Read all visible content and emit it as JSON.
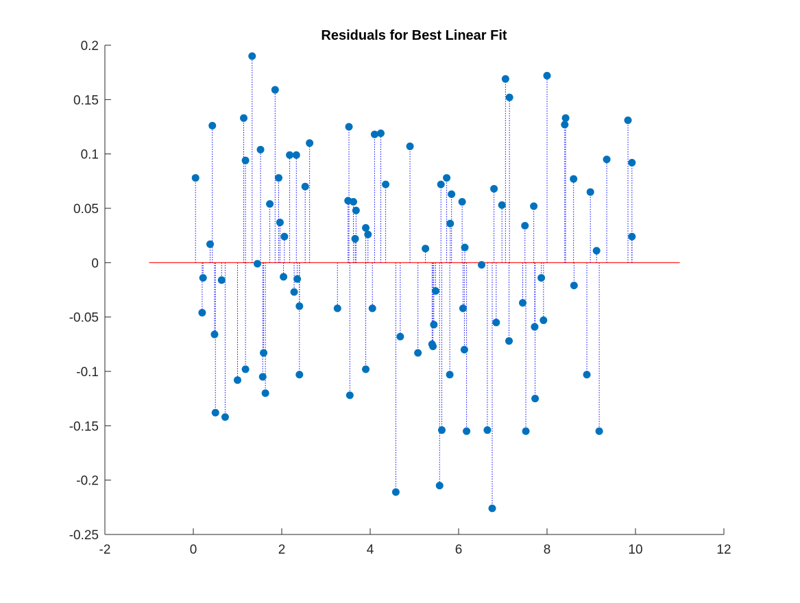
{
  "chart_data": {
    "type": "scatter",
    "title": "Residuals for Best Linear Fit",
    "xlabel": "",
    "ylabel": "",
    "xlim": [
      -2,
      12
    ],
    "ylim": [
      -0.25,
      0.2
    ],
    "xticks": [
      "-2",
      "0",
      "2",
      "4",
      "6",
      "8",
      "10",
      "12"
    ],
    "yticks": [
      "-0.25",
      "-0.2",
      "-0.15",
      "-0.1",
      "-0.05",
      "0",
      "0.05",
      "0.1",
      "0.15",
      "0.2"
    ],
    "grid": false,
    "colors": {
      "marker": "#0072bd",
      "stem": "#0000ff",
      "baseline": "#ff0000",
      "axis": "#262626"
    },
    "baseline": {
      "y": 0,
      "x_range": [
        -1,
        11
      ]
    },
    "points": [
      [
        0.05,
        0.078
      ],
      [
        0.2,
        -0.046
      ],
      [
        0.22,
        -0.014
      ],
      [
        0.38,
        0.017
      ],
      [
        0.43,
        0.126
      ],
      [
        0.48,
        -0.066
      ],
      [
        0.5,
        -0.138
      ],
      [
        0.64,
        -0.016
      ],
      [
        0.72,
        -0.142
      ],
      [
        1.0,
        -0.108
      ],
      [
        1.14,
        0.133
      ],
      [
        1.18,
        0.094
      ],
      [
        1.18,
        -0.098
      ],
      [
        1.33,
        0.19
      ],
      [
        1.45,
        -0.001
      ],
      [
        1.52,
        0.104
      ],
      [
        1.57,
        -0.105
      ],
      [
        1.59,
        -0.083
      ],
      [
        1.63,
        -0.12
      ],
      [
        1.73,
        0.054
      ],
      [
        1.85,
        0.159
      ],
      [
        1.93,
        0.078
      ],
      [
        1.96,
        0.037
      ],
      [
        2.04,
        -0.013
      ],
      [
        2.06,
        0.024
      ],
      [
        2.18,
        0.099
      ],
      [
        2.28,
        -0.027
      ],
      [
        2.33,
        0.099
      ],
      [
        2.35,
        -0.015
      ],
      [
        2.4,
        -0.04
      ],
      [
        2.4,
        -0.103
      ],
      [
        2.53,
        0.07
      ],
      [
        2.63,
        0.11
      ],
      [
        3.26,
        -0.042
      ],
      [
        3.5,
        0.057
      ],
      [
        3.52,
        0.125
      ],
      [
        3.54,
        -0.122
      ],
      [
        3.62,
        0.056
      ],
      [
        3.66,
        0.022
      ],
      [
        3.68,
        0.048
      ],
      [
        3.9,
        0.032
      ],
      [
        3.9,
        -0.098
      ],
      [
        3.95,
        0.026
      ],
      [
        4.05,
        -0.042
      ],
      [
        4.1,
        0.118
      ],
      [
        4.24,
        0.119
      ],
      [
        4.35,
        0.072
      ],
      [
        4.58,
        -0.211
      ],
      [
        4.68,
        -0.068
      ],
      [
        4.9,
        0.107
      ],
      [
        5.08,
        -0.083
      ],
      [
        5.25,
        0.013
      ],
      [
        5.4,
        -0.075
      ],
      [
        5.42,
        -0.077
      ],
      [
        5.44,
        -0.057
      ],
      [
        5.48,
        -0.026
      ],
      [
        5.57,
        -0.205
      ],
      [
        5.6,
        0.072
      ],
      [
        5.62,
        -0.154
      ],
      [
        5.73,
        0.078
      ],
      [
        5.8,
        -0.103
      ],
      [
        5.81,
        0.036
      ],
      [
        5.84,
        0.063
      ],
      [
        6.08,
        0.056
      ],
      [
        6.1,
        -0.042
      ],
      [
        6.13,
        -0.08
      ],
      [
        6.14,
        0.014
      ],
      [
        6.18,
        -0.155
      ],
      [
        6.52,
        -0.002
      ],
      [
        6.65,
        -0.154
      ],
      [
        6.76,
        -0.226
      ],
      [
        6.8,
        0.068
      ],
      [
        6.85,
        -0.055
      ],
      [
        6.98,
        0.053
      ],
      [
        7.06,
        0.169
      ],
      [
        7.14,
        -0.072
      ],
      [
        7.15,
        0.152
      ],
      [
        7.45,
        -0.037
      ],
      [
        7.5,
        0.034
      ],
      [
        7.52,
        -0.155
      ],
      [
        7.7,
        0.052
      ],
      [
        7.72,
        -0.059
      ],
      [
        7.73,
        -0.125
      ],
      [
        7.87,
        -0.014
      ],
      [
        7.92,
        -0.053
      ],
      [
        8.0,
        0.172
      ],
      [
        8.4,
        0.127
      ],
      [
        8.42,
        0.133
      ],
      [
        8.6,
        0.077
      ],
      [
        8.61,
        -0.021
      ],
      [
        8.9,
        -0.103
      ],
      [
        8.98,
        0.065
      ],
      [
        9.12,
        0.011
      ],
      [
        9.18,
        -0.155
      ],
      [
        9.35,
        0.095
      ],
      [
        9.83,
        0.131
      ],
      [
        9.92,
        0.092
      ],
      [
        9.92,
        0.024
      ]
    ]
  }
}
